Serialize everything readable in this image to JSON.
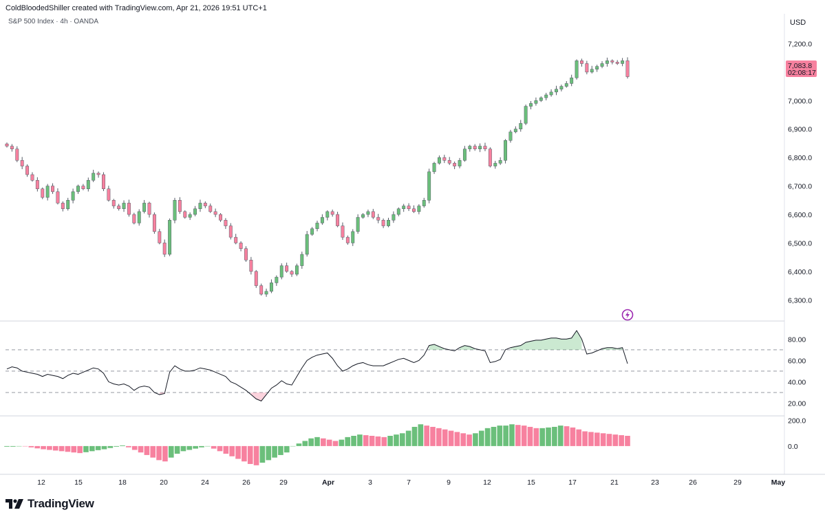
{
  "header": {
    "attribution": "ColdBloodedShiller created with TradingView.com, Apr 21, 2026 19:51 UTC+1",
    "symbol_line": "S&P 500 Index · 4h · OANDA"
  },
  "price_panel": {
    "currency": "USD",
    "last_price": "7,083.8",
    "countdown": "02:08:17",
    "accent_color": "#f7819f"
  },
  "footer": {
    "brand": "TradingView"
  },
  "chart_data": [
    {
      "type": "candlestick",
      "title": "S&P 500 Index · 4h · OANDA",
      "y_axis_ticks": [
        "6,300.0",
        "6,400.0",
        "6,500.0",
        "6,600.0",
        "6,700.0",
        "6,800.0",
        "6,900.0",
        "7,000.0",
        "7,100.0",
        "7,200.0"
      ],
      "ylim": [
        6262,
        7247
      ],
      "x_tick_labels": [
        "12",
        "15",
        "18",
        "20",
        "24",
        "26",
        "29",
        "Apr",
        "3",
        "7",
        "9",
        "12",
        "15",
        "17",
        "21",
        "23",
        "26",
        "29",
        "May"
      ],
      "up_color": "#6bbf7b",
      "down_color": "#f7819f",
      "close_path": [
        6840,
        6830,
        6790,
        6770,
        6740,
        6720,
        6690,
        6660,
        6700,
        6680,
        6640,
        6620,
        6650,
        6680,
        6700,
        6690,
        6720,
        6745,
        6740,
        6690,
        6650,
        6630,
        6620,
        6640,
        6600,
        6570,
        6610,
        6640,
        6600,
        6540,
        6500,
        6460,
        6580,
        6650,
        6610,
        6590,
        6600,
        6620,
        6640,
        6630,
        6610,
        6600,
        6580,
        6560,
        6520,
        6500,
        6480,
        6440,
        6400,
        6350,
        6320,
        6330,
        6360,
        6380,
        6420,
        6400,
        6390,
        6420,
        6460,
        6530,
        6550,
        6570,
        6590,
        6610,
        6600,
        6560,
        6520,
        6500,
        6540,
        6590,
        6600,
        6610,
        6590,
        6580,
        6560,
        6580,
        6600,
        6620,
        6630,
        6620,
        6610,
        6630,
        6650,
        6750,
        6780,
        6800,
        6790,
        6780,
        6770,
        6790,
        6830,
        6840,
        6830,
        6840,
        6830,
        6770,
        6780,
        6790,
        6860,
        6890,
        6900,
        6920,
        6980,
        6990,
        7000,
        7010,
        7020,
        7030,
        7040,
        7050,
        7060,
        7080,
        7140,
        7130,
        7100,
        7110,
        7120,
        7130,
        7140,
        7135,
        7130,
        7140,
        7083.8
      ],
      "wick_amplitude": 12
    },
    {
      "type": "line",
      "y_axis_ticks": [
        "20.00",
        "40.00",
        "60.00",
        "80.00"
      ],
      "ylim": [
        10,
        95
      ],
      "levels": [
        30,
        50,
        70
      ],
      "line_color": "#131722",
      "values": [
        52,
        54,
        53,
        50,
        49,
        48,
        47,
        45,
        47,
        46,
        45,
        43,
        46,
        48,
        47,
        49,
        51,
        53,
        52,
        48,
        40,
        38,
        37,
        38,
        36,
        32,
        35,
        36,
        35,
        30,
        28,
        29,
        49,
        55,
        52,
        50,
        50,
        51,
        53,
        52,
        51,
        49,
        47,
        45,
        40,
        38,
        35,
        32,
        28,
        24,
        22,
        28,
        34,
        37,
        41,
        38,
        37,
        45,
        53,
        60,
        63,
        65,
        66,
        67,
        62,
        55,
        50,
        52,
        55,
        57,
        58,
        56,
        55,
        55,
        55,
        57,
        59,
        61,
        62,
        60,
        58,
        60,
        65,
        74,
        75,
        73,
        71,
        70,
        69,
        72,
        74,
        73,
        71,
        70,
        69,
        58,
        59,
        61,
        70,
        72,
        73,
        74,
        77,
        78,
        79,
        79,
        80,
        81,
        81,
        80,
        80,
        81,
        88,
        80,
        66,
        67,
        69,
        71,
        72,
        72,
        71,
        72,
        57
      ]
    },
    {
      "type": "bar",
      "y_axis_ticks": [
        "0.0",
        "200.0"
      ],
      "ylim": [
        -210,
        225
      ],
      "up_color": "#6bbf7b",
      "down_color": "#f7819f",
      "values": [
        -5,
        -5,
        0,
        -2,
        -10,
        -18,
        -25,
        -30,
        -35,
        -40,
        -45,
        -50,
        -55,
        -48,
        -40,
        -32,
        -25,
        -15,
        -5,
        5,
        -10,
        -30,
        -50,
        -70,
        -90,
        -110,
        -120,
        -90,
        -60,
        -40,
        -30,
        -20,
        -10,
        0,
        -20,
        -40,
        -60,
        -80,
        -100,
        -120,
        -140,
        -150,
        -130,
        -110,
        -90,
        -70,
        -50,
        0,
        20,
        40,
        60,
        70,
        60,
        50,
        40,
        50,
        70,
        80,
        90,
        85,
        80,
        75,
        70,
        80,
        90,
        100,
        120,
        150,
        170,
        160,
        150,
        140,
        130,
        120,
        110,
        100,
        90,
        100,
        120,
        140,
        150,
        160,
        160,
        170,
        165,
        160,
        150,
        140,
        140,
        145,
        150,
        160,
        155,
        145,
        130,
        115,
        110,
        105,
        100,
        95,
        90,
        85,
        80
      ]
    }
  ]
}
